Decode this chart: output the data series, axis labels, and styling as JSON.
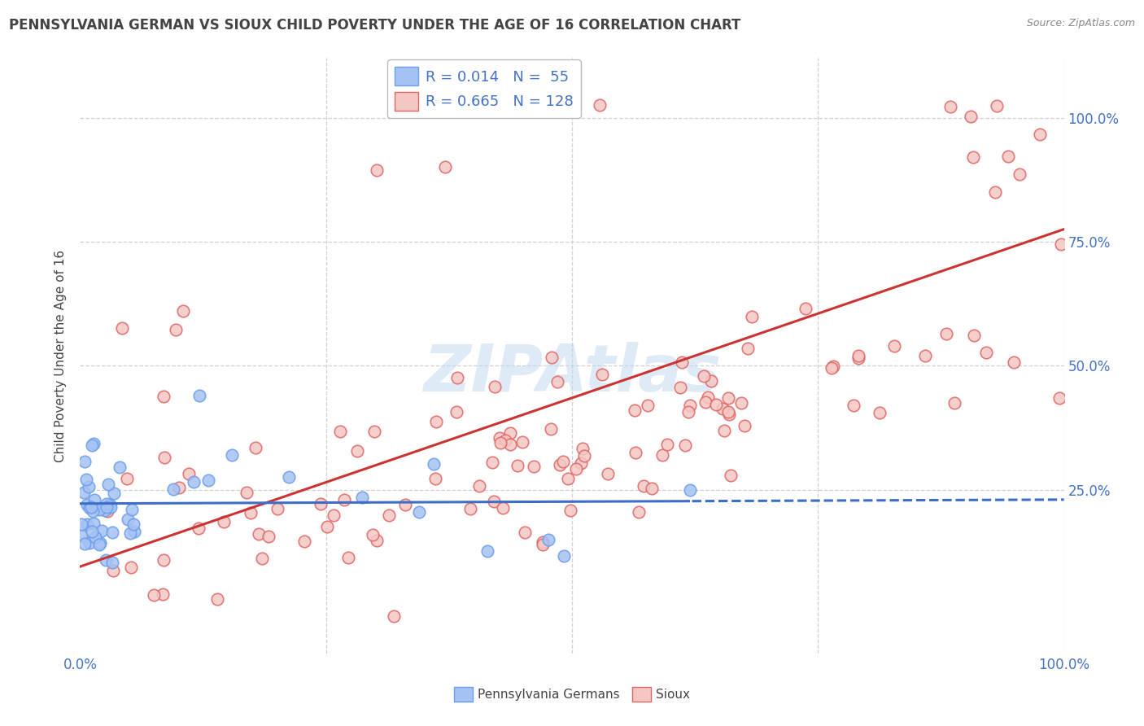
{
  "title": "PENNSYLVANIA GERMAN VS SIOUX CHILD POVERTY UNDER THE AGE OF 16 CORRELATION CHART",
  "source": "Source: ZipAtlas.com",
  "ylabel": "Child Poverty Under the Age of 16",
  "xlim": [
    0,
    1
  ],
  "ylim": [
    -0.08,
    1.12
  ],
  "ytick_values": [
    0.25,
    0.5,
    0.75,
    1.0
  ],
  "ytick_labels": [
    "25.0%",
    "50.0%",
    "75.0%",
    "100.0%"
  ],
  "blue_fill": "#a4c2f4",
  "pink_fill": "#f4c7c3",
  "blue_edge": "#6d9eeb",
  "pink_edge": "#e06666",
  "blue_line_color": "#3d6dc7",
  "pink_line_color": "#cc3333",
  "label_color": "#4472c4",
  "text_color": "#444444",
  "grid_color": "#d0d0d0",
  "watermark_color": "#c5d9f1",
  "legend_label_blue": "Pennsylvania Germans",
  "legend_label_pink": "Sioux",
  "blue_R_text": "R = 0.014",
  "blue_N_text": "N =  55",
  "pink_R_text": "R = 0.665",
  "pink_N_text": "N = 128",
  "blue_line_solid_end": 0.62,
  "pink_line_start_y": 0.095,
  "pink_line_end_y": 0.775,
  "blue_line_y_intercept": 0.222,
  "blue_line_slope": 0.008
}
